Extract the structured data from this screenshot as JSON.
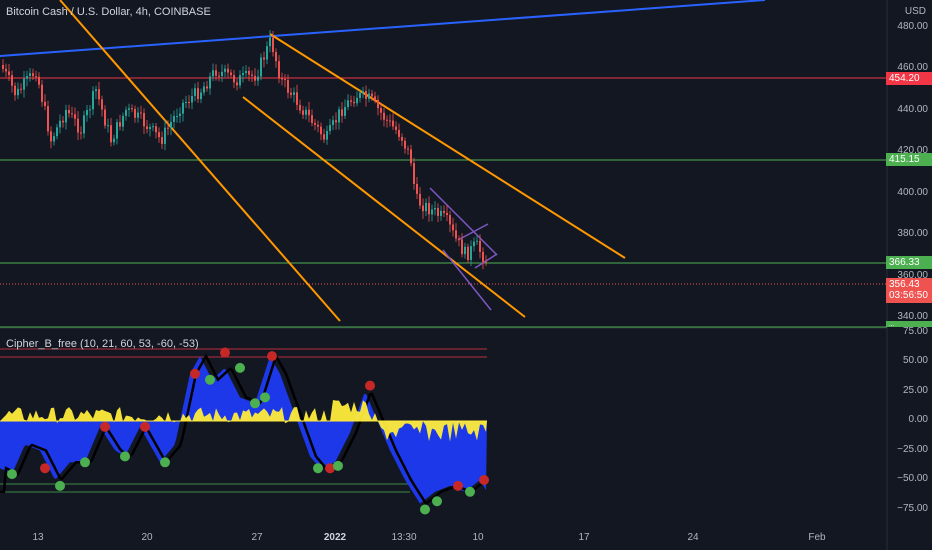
{
  "header": {
    "title": "Bitcoin Cash / U.S. Dollar, 4h, COINBASE",
    "currency": "USD"
  },
  "indicator": {
    "title": "Cipher_B_free (10, 21, 60, 53, -60, -53)"
  },
  "price_axis": {
    "ticks": [
      "480.00",
      "460.00",
      "440.00",
      "420.00",
      "400.00",
      "380.00",
      "360.00",
      "340.00"
    ]
  },
  "indicator_axis": {
    "ticks": [
      "75.00",
      "50.00",
      "25.00",
      "0.00",
      "−25.00",
      "−50.00",
      "−75.00"
    ]
  },
  "time_axis": {
    "ticks": [
      "13",
      "20",
      "27",
      "2022",
      "13:30",
      "10",
      "17",
      "24",
      "Feb"
    ]
  },
  "price_labels": {
    "red_level": "454.20",
    "green_upper": "415.15",
    "green_lower": "366.33",
    "current_price": "356.43",
    "countdown": "03:56:50",
    "indicator_level": "..."
  },
  "colors": {
    "background": "#131722",
    "up": "#26a69a",
    "down": "#ef5350",
    "orange_lines": "#ff9800",
    "blue_line": "#2962ff",
    "green_level": "#4caf50",
    "red_level": "#f23645"
  }
}
